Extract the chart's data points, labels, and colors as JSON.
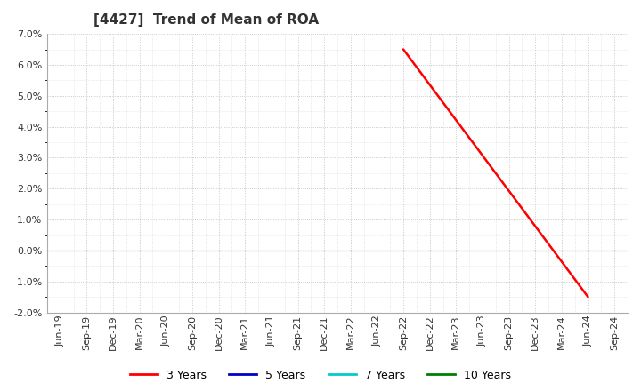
{
  "title": "[4427]  Trend of Mean of ROA",
  "ylim": [
    -0.02,
    0.07
  ],
  "yticks": [
    -0.02,
    -0.01,
    0.0,
    0.01,
    0.02,
    0.03,
    0.04,
    0.05,
    0.06,
    0.07
  ],
  "x_labels": [
    "Jun-19",
    "Sep-19",
    "Dec-19",
    "Mar-20",
    "Jun-20",
    "Sep-20",
    "Dec-20",
    "Mar-21",
    "Jun-21",
    "Sep-21",
    "Dec-21",
    "Mar-22",
    "Jun-22",
    "Sep-22",
    "Dec-22",
    "Mar-23",
    "Jun-23",
    "Sep-23",
    "Dec-23",
    "Mar-24",
    "Jun-24",
    "Sep-24"
  ],
  "series": {
    "3 Years": {
      "color": "#ff0000",
      "data_x": [
        "Sep-22",
        "Jun-24"
      ],
      "data_y": [
        0.065,
        -0.015
      ]
    },
    "5 Years": {
      "color": "#0000cc",
      "data_x": [],
      "data_y": []
    },
    "7 Years": {
      "color": "#00cccc",
      "data_x": [],
      "data_y": []
    },
    "10 Years": {
      "color": "#008000",
      "data_x": [],
      "data_y": []
    }
  },
  "background_color": "#ffffff",
  "grid_color": "#bbbbbb",
  "legend_colors": [
    "#ff0000",
    "#0000cc",
    "#00cccc",
    "#008000"
  ],
  "legend_labels": [
    "3 Years",
    "5 Years",
    "7 Years",
    "10 Years"
  ],
  "title_fontsize": 11,
  "tick_fontsize": 8
}
